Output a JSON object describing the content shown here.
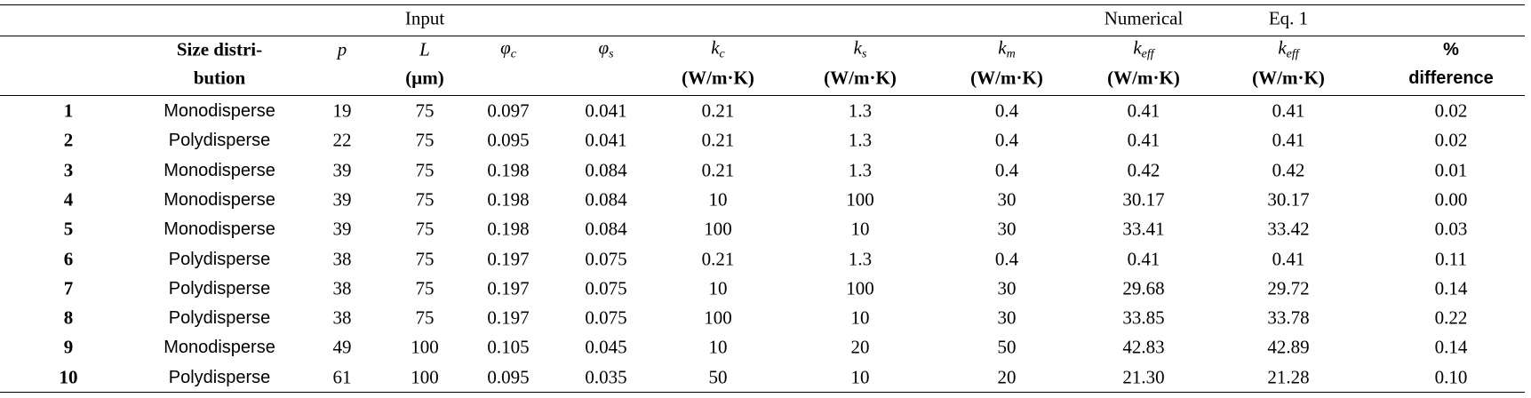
{
  "table": {
    "group_headers": [
      {
        "text": "Input",
        "column": 3
      },
      {
        "text": "Numerical",
        "column": 9
      },
      {
        "text": "Eq. 1",
        "column": 10
      }
    ],
    "columns": [
      null,
      {
        "lines": [
          "Size distri-",
          "bution"
        ]
      },
      {
        "symbol": "p"
      },
      {
        "symbol": "L",
        "unit": "(μm)"
      },
      {
        "symbol": "φ",
        "sub": "c"
      },
      {
        "symbol": "φ",
        "sub": "s"
      },
      {
        "symbol": "k",
        "sub": "c",
        "unit": "(W/m·K)"
      },
      {
        "symbol": "k",
        "sub": "s",
        "unit": "(W/m·K)"
      },
      {
        "symbol": "k",
        "sub": "m",
        "unit": "(W/m·K)"
      },
      {
        "symbol": "k",
        "sub": "eff",
        "unit": "(W/m·K)"
      },
      {
        "symbol": "k",
        "sub": "eff",
        "unit": "(W/m·K)"
      },
      {
        "lines": [
          "%",
          "difference"
        ]
      }
    ],
    "rows": [
      [
        "1",
        "Monodisperse",
        "19",
        "75",
        "0.097",
        "0.041",
        "0.21",
        "1.3",
        "0.4",
        "0.41",
        "0.41",
        "0.02"
      ],
      [
        "2",
        "Polydisperse",
        "22",
        "75",
        "0.095",
        "0.041",
        "0.21",
        "1.3",
        "0.4",
        "0.41",
        "0.41",
        "0.02"
      ],
      [
        "3",
        "Monodisperse",
        "39",
        "75",
        "0.198",
        "0.084",
        "0.21",
        "1.3",
        "0.4",
        "0.42",
        "0.42",
        "0.01"
      ],
      [
        "4",
        "Monodisperse",
        "39",
        "75",
        "0.198",
        "0.084",
        "10",
        "100",
        "30",
        "30.17",
        "30.17",
        "0.00"
      ],
      [
        "5",
        "Monodisperse",
        "39",
        "75",
        "0.198",
        "0.084",
        "100",
        "10",
        "30",
        "33.41",
        "33.42",
        "0.03"
      ],
      [
        "6",
        "Polydisperse",
        "38",
        "75",
        "0.197",
        "0.075",
        "0.21",
        "1.3",
        "0.4",
        "0.41",
        "0.41",
        "0.11"
      ],
      [
        "7",
        "Polydisperse",
        "38",
        "75",
        "0.197",
        "0.075",
        "10",
        "100",
        "30",
        "29.68",
        "29.72",
        "0.14"
      ],
      [
        "8",
        "Polydisperse",
        "38",
        "75",
        "0.197",
        "0.075",
        "100",
        "10",
        "30",
        "33.85",
        "33.78",
        "0.22"
      ],
      [
        "9",
        "Monodisperse",
        "49",
        "100",
        "0.105",
        "0.045",
        "10",
        "20",
        "50",
        "42.83",
        "42.89",
        "0.14"
      ],
      [
        "10",
        "Polydisperse",
        "61",
        "100",
        "0.095",
        "0.035",
        "50",
        "10",
        "20",
        "21.30",
        "21.28",
        "0.10"
      ]
    ]
  }
}
